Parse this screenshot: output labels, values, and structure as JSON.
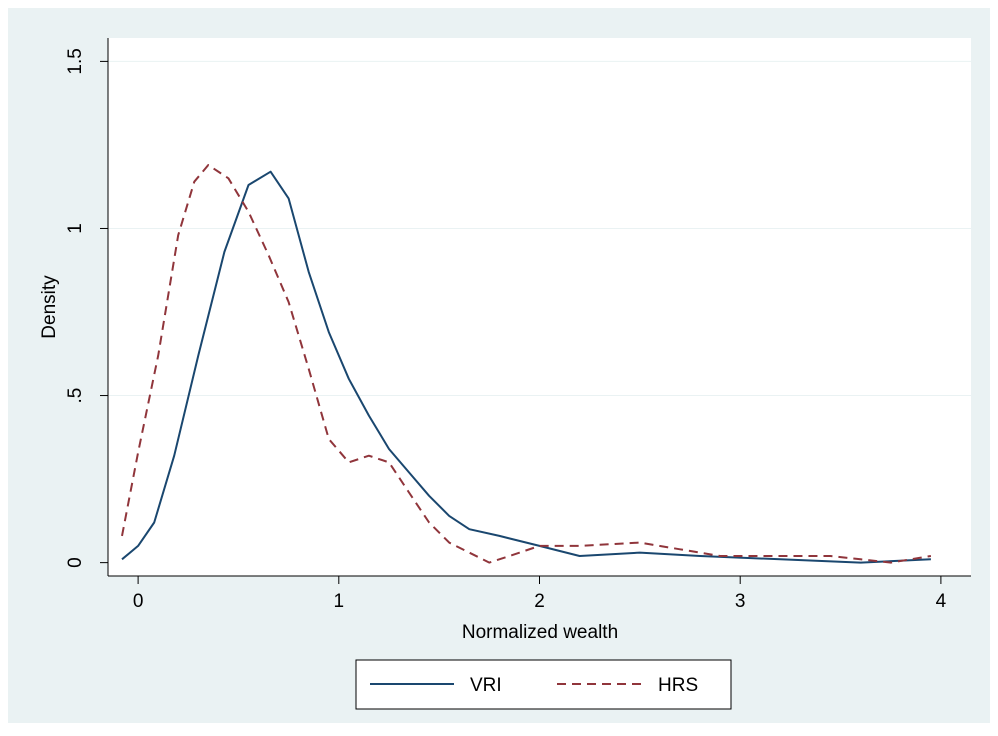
{
  "chart_data": {
    "type": "line",
    "title": "",
    "xlabel": "Normalized wealth",
    "ylabel": "Density",
    "xlim": [
      -0.15,
      4.15
    ],
    "ylim": [
      -0.04,
      1.57
    ],
    "xticks": [
      0,
      1,
      2,
      3,
      4
    ],
    "xtick_labels": [
      "0",
      "1",
      "2",
      "3",
      "4"
    ],
    "yticks": [
      0,
      0.5,
      1,
      1.5
    ],
    "ytick_labels": [
      "0",
      ".5",
      "1",
      "1.5"
    ],
    "grid": "horizontal",
    "legend_position": "bottom",
    "series": [
      {
        "name": "VRI",
        "color": "#1a476f",
        "dash": "solid",
        "x": [
          -0.08,
          0.0,
          0.08,
          0.18,
          0.3,
          0.43,
          0.55,
          0.66,
          0.75,
          0.85,
          0.95,
          1.05,
          1.15,
          1.25,
          1.35,
          1.45,
          1.55,
          1.65,
          1.8,
          2.0,
          2.2,
          2.5,
          2.8,
          3.2,
          3.6,
          3.95
        ],
        "y": [
          0.01,
          0.05,
          0.12,
          0.32,
          0.62,
          0.93,
          1.13,
          1.17,
          1.09,
          0.87,
          0.69,
          0.55,
          0.44,
          0.34,
          0.27,
          0.2,
          0.14,
          0.1,
          0.08,
          0.05,
          0.02,
          0.03,
          0.02,
          0.01,
          0.0,
          0.01
        ]
      },
      {
        "name": "HRS",
        "color": "#90353b",
        "dash": "dashed",
        "x": [
          -0.08,
          0.0,
          0.1,
          0.2,
          0.28,
          0.35,
          0.45,
          0.55,
          0.65,
          0.75,
          0.85,
          0.95,
          1.05,
          1.15,
          1.25,
          1.35,
          1.45,
          1.55,
          1.65,
          1.75,
          1.85,
          2.0,
          2.2,
          2.5,
          2.7,
          2.9,
          3.2,
          3.45,
          3.6,
          3.75,
          3.95
        ],
        "y": [
          0.08,
          0.33,
          0.62,
          0.98,
          1.14,
          1.19,
          1.15,
          1.05,
          0.92,
          0.78,
          0.58,
          0.37,
          0.3,
          0.32,
          0.3,
          0.21,
          0.12,
          0.06,
          0.03,
          0.0,
          0.02,
          0.05,
          0.05,
          0.06,
          0.04,
          0.02,
          0.02,
          0.02,
          0.01,
          0.0,
          0.02
        ]
      }
    ]
  }
}
